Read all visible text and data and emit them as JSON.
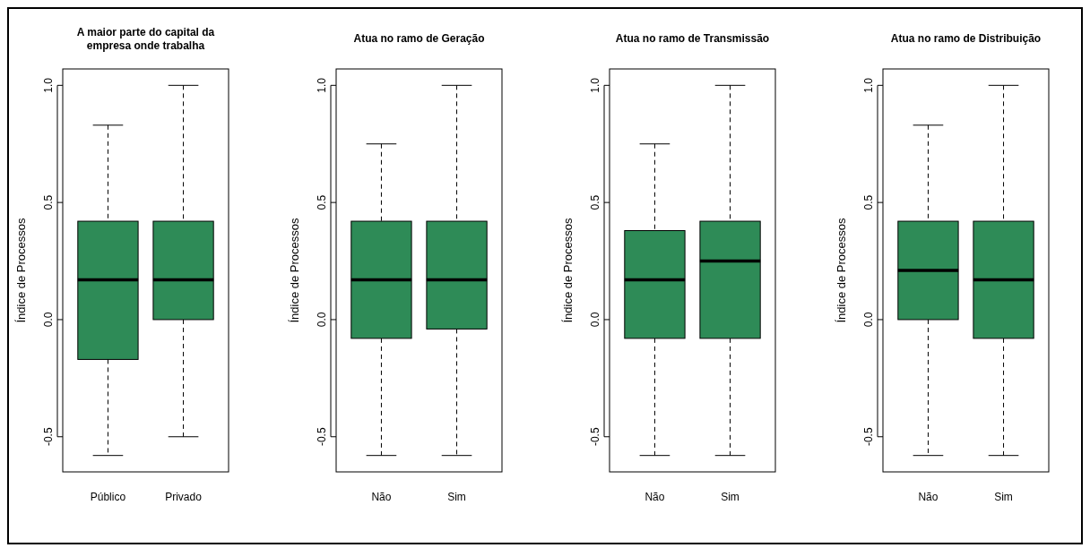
{
  "chart_data": [
    {
      "type": "box",
      "title": "A maior parte do capital da empresa onde trabalha",
      "ylabel": "Índice de Processos",
      "categories": [
        "Público",
        "Privado"
      ],
      "ylim": [
        -0.65,
        1.07
      ],
      "yticks": [
        {
          "value": -0.5,
          "label": "-0.5"
        },
        {
          "value": 0,
          "label": "0.0"
        },
        {
          "value": 0.5,
          "label": "0.5"
        },
        {
          "value": 1,
          "label": "1.0"
        }
      ],
      "series": [
        {
          "color": "#2e8b57",
          "boxes": [
            {
              "low": -0.58,
              "q1": -0.17,
              "median": 0.17,
              "q3": 0.42,
              "high": 0.83
            },
            {
              "low": -0.5,
              "q1": 0,
              "median": 0.17,
              "q3": 0.42,
              "high": 1
            }
          ]
        }
      ]
    },
    {
      "type": "box",
      "title": "Atua no ramo de Geração",
      "ylabel": "Índice de Processos",
      "categories": [
        "Não",
        "Sim"
      ],
      "ylim": [
        -0.65,
        1.07
      ],
      "yticks": [
        {
          "value": -0.5,
          "label": "-0.5"
        },
        {
          "value": 0,
          "label": "0.0"
        },
        {
          "value": 0.5,
          "label": "0.5"
        },
        {
          "value": 1,
          "label": "1.0"
        }
      ],
      "series": [
        {
          "color": "#2e8b57",
          "boxes": [
            {
              "low": -0.58,
              "q1": -0.08,
              "median": 0.17,
              "q3": 0.42,
              "high": 0.75
            },
            {
              "low": -0.58,
              "q1": -0.04,
              "median": 0.17,
              "q3": 0.42,
              "high": 1
            }
          ]
        }
      ]
    },
    {
      "type": "box",
      "title": "Atua no ramo de Transmissão",
      "ylabel": "Índice de Processos",
      "categories": [
        "Não",
        "Sim"
      ],
      "ylim": [
        -0.65,
        1.07
      ],
      "yticks": [
        {
          "value": -0.5,
          "label": "-0.5"
        },
        {
          "value": 0,
          "label": "0.0"
        },
        {
          "value": 0.5,
          "label": "0.5"
        },
        {
          "value": 1,
          "label": "1.0"
        }
      ],
      "series": [
        {
          "color": "#2e8b57",
          "boxes": [
            {
              "low": -0.58,
              "q1": -0.08,
              "median": 0.17,
              "q3": 0.38,
              "high": 0.75
            },
            {
              "low": -0.58,
              "q1": -0.08,
              "median": 0.25,
              "q3": 0.42,
              "high": 1
            }
          ]
        }
      ]
    },
    {
      "type": "box",
      "title": "Atua no ramo de Distribuição",
      "ylabel": "Índice de Processos",
      "categories": [
        "Não",
        "Sim"
      ],
      "ylim": [
        -0.65,
        1.07
      ],
      "yticks": [
        {
          "value": -0.5,
          "label": "-0.5"
        },
        {
          "value": 0,
          "label": "0.0"
        },
        {
          "value": 0.5,
          "label": "0.5"
        },
        {
          "value": 1,
          "label": "1.0"
        }
      ],
      "series": [
        {
          "color": "#2e8b57",
          "boxes": [
            {
              "low": -0.58,
              "q1": 0,
              "median": 0.21,
              "q3": 0.42,
              "high": 0.83
            },
            {
              "low": -0.58,
              "q1": -0.08,
              "median": 0.17,
              "q3": 0.42,
              "high": 1
            }
          ]
        }
      ]
    }
  ]
}
